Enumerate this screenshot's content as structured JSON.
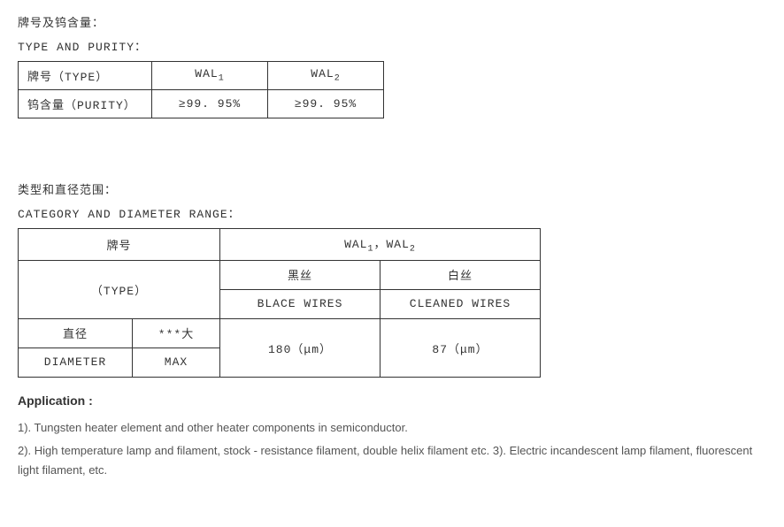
{
  "section1": {
    "title_cn": "牌号及钨含量：",
    "title_en": "TYPE AND PURITY：",
    "table": {
      "rows": [
        {
          "label": "牌号（TYPE）",
          "v1_pre": "WAL",
          "v1_sub": "1",
          "v2_pre": "WAL",
          "v2_sub": "2"
        },
        {
          "label": "钨含量（PURITY）",
          "v1": "≥99. 95%",
          "v2": "≥99. 95%"
        }
      ]
    }
  },
  "section2": {
    "title_cn": "类型和直径范围：",
    "title_en": "CATEGORY AND DIAMETER RANGE：",
    "table": {
      "header_left_cn": "牌号",
      "header_left_en": "（TYPE）",
      "header_right_pre1": "WAL",
      "header_right_sub1": "1",
      "header_right_sep": "，",
      "header_right_pre2": "WAL",
      "header_right_sub2": "2",
      "col3_cn": "黑丝",
      "col3_en": "BLACE WIRES",
      "col4_cn": "白丝",
      "col4_en": "CLEANED WIRES",
      "row_label1_cn": "直径",
      "row_label1_en": "DIAMETER",
      "row_label2_cn": "***大",
      "row_label2_en": "MAX",
      "val3": "180（μm）",
      "val4": "87（μm）"
    }
  },
  "application": {
    "heading": "Application :",
    "line1": "1). Tungsten heater element and other heater components in semiconductor.",
    "line2": "2). High temperature lamp and filament, stock - resistance filament, double helix filament etc. 3). Electric incandescent lamp filament, fluorescent light filament, etc."
  }
}
